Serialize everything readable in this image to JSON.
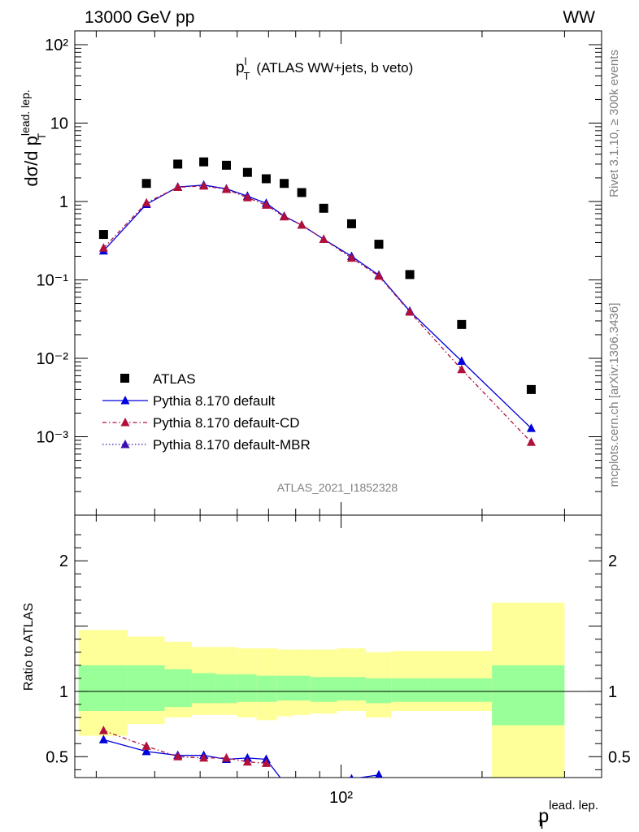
{
  "header": {
    "beam": "13000 GeV pp",
    "process": "WW"
  },
  "side_labels": {
    "rivet": "Rivet 3.1.10, ≥ 300k events",
    "mcplots": "mcplots.cern.ch [arXiv:1306.3436]"
  },
  "chart_data": [
    {
      "type": "scatter",
      "panel": "main",
      "title": "(ATLAS WW+jets, b veto)",
      "title_symbol": "p",
      "title_sup": "l",
      "title_sub": "T",
      "analysis_label": "ATLAS_2021_I1852328",
      "xlabel": {
        "base": "p",
        "sup": "lead. lep.",
        "sub": "T"
      },
      "ylabel": {
        "base": "dσ/d p",
        "sup": "lead. lep.",
        "sub": "T"
      },
      "xscale": "log",
      "yscale": "log",
      "xlim": [
        27,
        360
      ],
      "ylim": [
        0.0001,
        150
      ],
      "xticks": [
        {
          "value": 100,
          "label": "10²"
        }
      ],
      "yticks": [
        {
          "value": 100,
          "label": "10²"
        },
        {
          "value": 10,
          "label": "10"
        },
        {
          "value": 1,
          "label": "1"
        },
        {
          "value": 0.1,
          "label": "10⁻¹"
        },
        {
          "value": 0.01,
          "label": "10⁻²"
        },
        {
          "value": 0.001,
          "label": "10⁻³"
        }
      ],
      "legend_position": "bottom-left",
      "series": [
        {
          "name": "ATLAS",
          "style": "data",
          "color": "#000000",
          "x": [
            31.1,
            38.4,
            44.8,
            50.9,
            56.9,
            63.1,
            69.2,
            75.6,
            82.4,
            91.8,
            105.3,
            120.4,
            140.2,
            180.9,
            254.7
          ],
          "y": [
            0.38,
            1.7,
            3.0,
            3.2,
            2.9,
            2.35,
            1.95,
            1.7,
            1.3,
            0.82,
            0.52,
            0.285,
            0.117,
            0.027,
            0.004
          ]
        },
        {
          "name": "Pythia 8.170 default",
          "style": "solid",
          "color": "#0000dd",
          "x": [
            31.1,
            38.4,
            44.8,
            50.9,
            56.9,
            63.1,
            69.2,
            75.6,
            82.4,
            91.8,
            105.3,
            120.4,
            140.2,
            180.9,
            254.7
          ],
          "y": [
            0.235,
            0.92,
            1.53,
            1.62,
            1.45,
            1.17,
            0.95,
            0.65,
            0.5,
            0.33,
            0.2,
            0.115,
            0.04,
            0.0092,
            0.00128
          ]
        },
        {
          "name": "Pythia 8.170 default-CD",
          "style": "dashdot",
          "color": "#b0103a",
          "x": [
            31.1,
            38.4,
            44.8,
            50.9,
            56.9,
            63.1,
            69.2,
            75.6,
            82.4,
            91.8,
            105.3,
            120.4,
            140.2,
            180.9,
            254.7
          ],
          "y": [
            0.255,
            0.96,
            1.52,
            1.58,
            1.43,
            1.12,
            0.9,
            0.64,
            0.5,
            0.33,
            0.19,
            0.112,
            0.039,
            0.0072,
            0.00085
          ]
        },
        {
          "name": "Pythia 8.170 default-MBR",
          "style": "dotted",
          "color": "#3a10b0",
          "x": [],
          "y": []
        }
      ]
    },
    {
      "type": "line",
      "panel": "ratio",
      "ylabel": "Ratio to ATLAS",
      "xscale": "log",
      "xlim": [
        27,
        360
      ],
      "ylim": [
        0.34,
        2.35
      ],
      "yticks": [
        {
          "value": 0.5,
          "label": "0.5"
        },
        {
          "value": 1,
          "label": "1"
        },
        {
          "value": 2,
          "label": "2"
        }
      ],
      "bin_edges": [
        27.5,
        35,
        42,
        48,
        54,
        60,
        66,
        73,
        79,
        86,
        98,
        113,
        128,
        153,
        210,
        300
      ],
      "band_inner": {
        "lo": [
          0.85,
          0.85,
          0.88,
          0.91,
          0.91,
          0.92,
          0.92,
          0.93,
          0.93,
          0.92,
          0.93,
          0.91,
          0.92,
          0.92,
          0.74
        ],
        "hi": [
          1.2,
          1.2,
          1.17,
          1.14,
          1.13,
          1.13,
          1.12,
          1.12,
          1.12,
          1.11,
          1.11,
          1.1,
          1.1,
          1.1,
          1.2
        ]
      },
      "band_outer": {
        "lo": [
          0.66,
          0.75,
          0.8,
          0.82,
          0.82,
          0.8,
          0.78,
          0.81,
          0.82,
          0.83,
          0.85,
          0.8,
          0.85,
          0.85,
          0.25
        ],
        "hi": [
          1.47,
          1.42,
          1.38,
          1.34,
          1.34,
          1.33,
          1.33,
          1.32,
          1.32,
          1.32,
          1.33,
          1.3,
          1.31,
          1.31,
          1.68
        ]
      },
      "series": [
        {
          "name": "Pythia 8.170 default",
          "style": "solid",
          "color": "#0000dd",
          "x": [
            31.1,
            38.4,
            44.8,
            50.9,
            56.9,
            63.1,
            69.2,
            75.6,
            82.4,
            91.8,
            105.3,
            120.4
          ],
          "y": [
            0.63,
            0.54,
            0.51,
            0.51,
            0.48,
            0.49,
            0.48,
            0.3,
            0.27,
            0.27,
            0.33,
            0.36
          ]
        },
        {
          "name": "Pythia 8.170 default-CD",
          "style": "dashdot",
          "color": "#b0103a",
          "x": [
            31.1,
            38.4,
            44.8,
            50.9,
            56.9,
            63.1,
            69.2
          ],
          "y": [
            0.7,
            0.58,
            0.5,
            0.49,
            0.49,
            0.46,
            0.45
          ]
        }
      ]
    }
  ]
}
